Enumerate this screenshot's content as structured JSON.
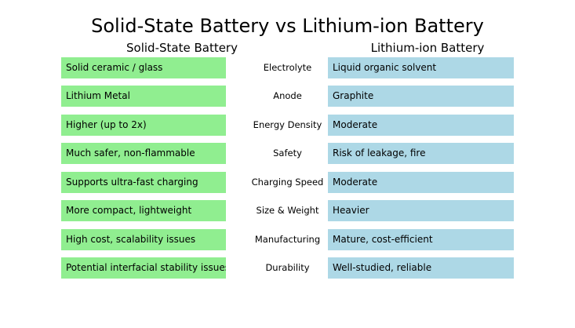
{
  "title": "Solid-State Battery vs Lithium-ion Battery",
  "columns": {
    "left": "Solid-State Battery",
    "right": "Lithium-ion Battery"
  },
  "colors": {
    "left_cell": "#90ee90",
    "right_cell": "#add8e6"
  },
  "rows": [
    {
      "feature": "Electrolyte",
      "left": "Solid ceramic / glass",
      "right": "Liquid organic solvent"
    },
    {
      "feature": "Anode",
      "left": "Lithium Metal",
      "right": "Graphite"
    },
    {
      "feature": "Energy Density",
      "left": "Higher (up to 2x)",
      "right": "Moderate"
    },
    {
      "feature": "Safety",
      "left": "Much safer, non-flammable",
      "right": "Risk of leakage, fire"
    },
    {
      "feature": "Charging Speed",
      "left": "Supports ultra-fast charging",
      "right": "Moderate"
    },
    {
      "feature": "Size & Weight",
      "left": "More compact, lightweight",
      "right": "Heavier"
    },
    {
      "feature": "Manufacturing",
      "left": "High cost, scalability issues",
      "right": "Mature, cost-efficient"
    },
    {
      "feature": "Durability",
      "left": "Potential interfacial stability issues",
      "right": "Well-studied, reliable"
    }
  ]
}
